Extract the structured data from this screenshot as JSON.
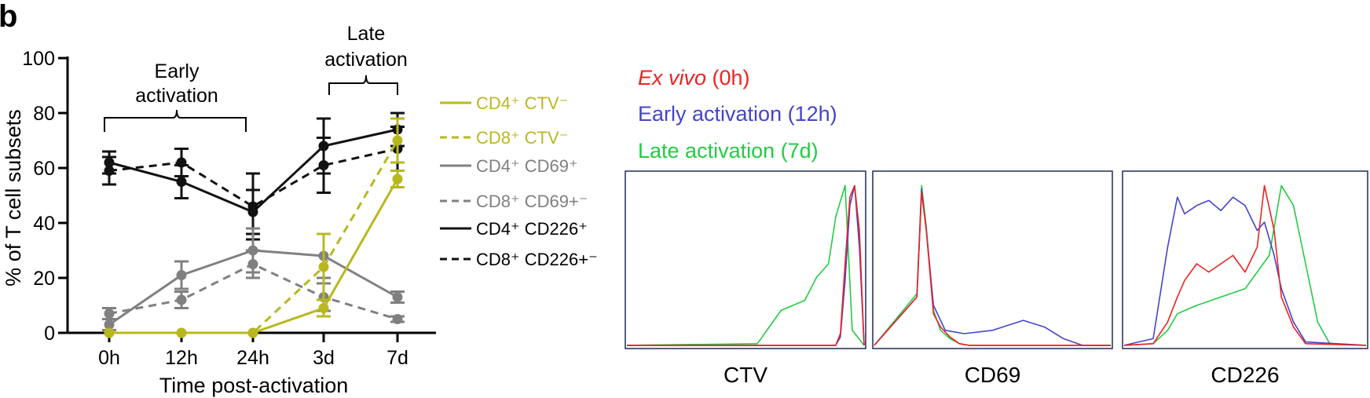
{
  "panel_label": "b",
  "colors": {
    "black": "#111111",
    "gray": "#808080",
    "olive": "#b8b81e",
    "red": "#ee2222",
    "blue": "#4444cc",
    "green": "#22cc44",
    "frame": "#1d2b59"
  },
  "left_annotations": {
    "early": [
      "Early",
      "activation"
    ],
    "late": [
      "Late",
      "activation"
    ]
  },
  "chart_data": [
    {
      "type": "line",
      "title": "",
      "xlabel": "Time post-activation",
      "ylabel": "% of T cell subsets",
      "categories": [
        "0h",
        "12h",
        "24h",
        "3d",
        "7d"
      ],
      "ylim": [
        0,
        100
      ],
      "yticks": [
        "0",
        "20",
        "40",
        "60",
        "80",
        "100"
      ],
      "grid": false,
      "legend_position": "right",
      "series": [
        {
          "name": "CD4⁺ CTV⁻",
          "color": "#b8b81e",
          "dashed": false,
          "values": [
            0,
            0,
            0,
            9,
            56
          ],
          "errors": [
            0,
            0,
            0,
            3,
            3
          ]
        },
        {
          "name": "CD8⁺ CTV⁻",
          "color": "#b8b81e",
          "dashed": true,
          "values": [
            0,
            0,
            0,
            24,
            70
          ],
          "errors": [
            0,
            0,
            0,
            12,
            8
          ]
        },
        {
          "name": "CD4⁺ CD69⁺",
          "color": "#808080",
          "dashed": false,
          "values": [
            3,
            21,
            30,
            28,
            13
          ],
          "errors": [
            2,
            5,
            8,
            8,
            2
          ]
        },
        {
          "name": "CD8⁺ CD69+⁻",
          "color": "#808080",
          "dashed": true,
          "values": [
            7,
            12,
            25,
            13,
            5
          ],
          "errors": [
            2,
            3,
            5,
            5,
            1
          ]
        },
        {
          "name": "CD4⁺ CD226⁺",
          "color": "#111111",
          "dashed": false,
          "values": [
            62,
            55,
            44,
            68,
            74
          ],
          "errors": [
            4,
            6,
            8,
            10,
            6
          ]
        },
        {
          "name": "CD8⁺ CD226+⁻",
          "color": "#111111",
          "dashed": true,
          "values": [
            59,
            62,
            46,
            61,
            67
          ],
          "errors": [
            5,
            5,
            12,
            10,
            8
          ]
        }
      ]
    },
    {
      "type": "area",
      "title": "",
      "legend": [
        {
          "italic": "Ex vivo",
          "text": " (0h)",
          "color": "#ee2222"
        },
        {
          "italic": "",
          "text": "Early activation (12h)",
          "color": "#4444cc"
        },
        {
          "italic": "",
          "text": "Late activation (7d)",
          "color": "#22cc44"
        }
      ],
      "panels": [
        {
          "xlabel": "CTV",
          "series": [
            {
              "name": "Ex vivo (0h)",
              "color": "#ee2222",
              "x": [
                0,
                0.88,
                0.9,
                0.92,
                0.94,
                0.96,
                0.98,
                1.0
              ],
              "y": [
                0.01,
                0.01,
                0.08,
                0.5,
                0.9,
                0.97,
                0.7,
                0.01
              ]
            },
            {
              "name": "Early activation (12h)",
              "color": "#4444cc",
              "x": [
                0,
                0.88,
                0.9,
                0.92,
                0.94,
                0.96,
                0.98,
                1.0
              ],
              "y": [
                0.01,
                0.01,
                0.06,
                0.4,
                0.85,
                0.97,
                0.6,
                0.01
              ]
            },
            {
              "name": "Late activation (7d)",
              "color": "#22cc44",
              "x": [
                0,
                0.55,
                0.6,
                0.65,
                0.7,
                0.75,
                0.8,
                0.85,
                0.88,
                0.92,
                0.95,
                1.0
              ],
              "y": [
                0.01,
                0.02,
                0.12,
                0.22,
                0.25,
                0.28,
                0.42,
                0.5,
                0.78,
                0.97,
                0.1,
                0.01
              ]
            }
          ]
        },
        {
          "xlabel": "CD69",
          "series": [
            {
              "name": "Ex vivo (0h)",
              "color": "#ee2222",
              "x": [
                0,
                0.18,
                0.2,
                0.22,
                0.25,
                0.28,
                0.32,
                0.36,
                0.4,
                1.0
              ],
              "y": [
                0.01,
                0.3,
                0.93,
                0.7,
                0.2,
                0.12,
                0.06,
                0.02,
                0.01,
                0.01
              ]
            },
            {
              "name": "Early activation (12h)",
              "color": "#4444cc",
              "x": [
                0,
                0.18,
                0.2,
                0.22,
                0.25,
                0.3,
                0.38,
                0.5,
                0.63,
                0.72,
                0.8,
                0.88,
                1.0
              ],
              "y": [
                0.01,
                0.3,
                0.95,
                0.7,
                0.25,
                0.1,
                0.08,
                0.1,
                0.16,
                0.12,
                0.05,
                0.01,
                0.01
              ]
            },
            {
              "name": "Late activation (7d)",
              "color": "#22cc44",
              "x": [
                0,
                0.18,
                0.2,
                0.22,
                0.25,
                0.28,
                0.32,
                0.36,
                0.4,
                1.0
              ],
              "y": [
                0.01,
                0.32,
                0.97,
                0.72,
                0.22,
                0.1,
                0.05,
                0.02,
                0.01,
                0.01
              ]
            }
          ]
        },
        {
          "xlabel": "CD226",
          "series": [
            {
              "name": "Ex vivo (0h)",
              "color": "#ee2222",
              "x": [
                0,
                0.12,
                0.18,
                0.22,
                0.25,
                0.3,
                0.35,
                0.4,
                0.45,
                0.5,
                0.55,
                0.58,
                0.62,
                0.65,
                0.7,
                0.75,
                1.0
              ],
              "y": [
                0.01,
                0.02,
                0.15,
                0.3,
                0.4,
                0.5,
                0.45,
                0.5,
                0.55,
                0.45,
                0.6,
                0.97,
                0.7,
                0.3,
                0.12,
                0.02,
                0.01
              ]
            },
            {
              "name": "Early activation (12h)",
              "color": "#4444cc",
              "x": [
                0,
                0.12,
                0.18,
                0.22,
                0.25,
                0.3,
                0.35,
                0.4,
                0.45,
                0.5,
                0.55,
                0.58,
                0.62,
                0.65,
                0.7,
                0.75,
                1.0
              ],
              "y": [
                0.01,
                0.05,
                0.6,
                0.9,
                0.8,
                0.85,
                0.88,
                0.82,
                0.9,
                0.85,
                0.7,
                0.75,
                0.55,
                0.35,
                0.15,
                0.03,
                0.01
              ]
            },
            {
              "name": "Late activation (7d)",
              "color": "#22cc44",
              "x": [
                0,
                0.12,
                0.18,
                0.22,
                0.3,
                0.4,
                0.5,
                0.55,
                0.6,
                0.65,
                0.7,
                0.75,
                0.8,
                0.85,
                1.0
              ],
              "y": [
                0.01,
                0.02,
                0.1,
                0.2,
                0.25,
                0.3,
                0.35,
                0.45,
                0.55,
                0.97,
                0.85,
                0.5,
                0.15,
                0.02,
                0.01
              ]
            }
          ]
        }
      ]
    }
  ]
}
